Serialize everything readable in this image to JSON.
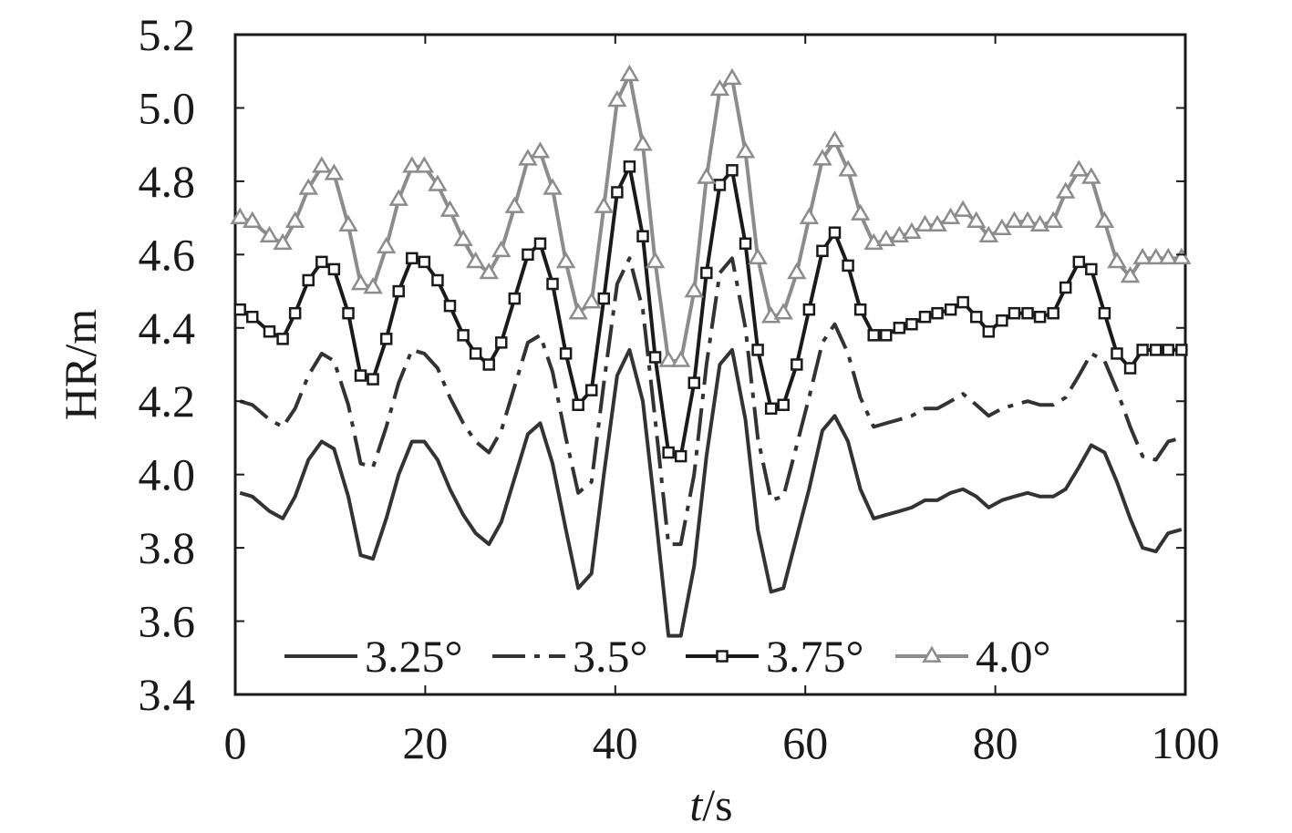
{
  "chart_data": {
    "type": "line",
    "xlabel_italic": "t",
    "xlabel_unit": "/s",
    "ylabel": "HR/m",
    "xlim": [
      0,
      100
    ],
    "ylim": [
      3.4,
      5.2
    ],
    "xticks": [
      0,
      20,
      40,
      60,
      80,
      100
    ],
    "xtick_labels": [
      "0",
      "20",
      "40",
      "60",
      "80",
      "100"
    ],
    "yticks": [
      3.4,
      3.6,
      3.8,
      4.0,
      4.2,
      4.4,
      4.6,
      4.8,
      5.0,
      5.2
    ],
    "ytick_labels": [
      "3.4",
      "3.6",
      "3.8",
      "4.0",
      "4.2",
      "4.4",
      "4.6",
      "4.8",
      "5.0",
      "5.2"
    ],
    "grid": false,
    "legend_position": "bottom",
    "x": [
      0.5,
      1.8,
      3.6,
      5.0,
      6.3,
      7.7,
      9.1,
      10.4,
      11.9,
      13.2,
      14.5,
      15.9,
      17.2,
      18.6,
      19.9,
      21.3,
      22.6,
      24.0,
      25.3,
      26.7,
      28.0,
      29.4,
      30.8,
      32.1,
      33.4,
      34.8,
      36.1,
      37.5,
      38.8,
      40.2,
      41.5,
      42.9,
      44.2,
      45.6,
      46.9,
      48.3,
      49.6,
      51.0,
      52.3,
      53.7,
      55.0,
      56.4,
      57.7,
      59.1,
      60.4,
      61.8,
      63.1,
      64.5,
      65.8,
      67.2,
      68.5,
      69.9,
      71.2,
      72.6,
      73.9,
      75.3,
      76.6,
      78.0,
      79.3,
      80.7,
      82.0,
      83.4,
      84.7,
      86.1,
      87.4,
      88.8,
      90.1,
      91.5,
      92.8,
      94.2,
      95.5,
      96.9,
      98.2,
      99.6
    ],
    "series": [
      {
        "name": "3.25°",
        "color": "#333333",
        "dash": "solid",
        "marker": "none",
        "values": [
          3.95,
          3.94,
          3.9,
          3.88,
          3.94,
          4.04,
          4.09,
          4.07,
          3.94,
          3.78,
          3.77,
          3.88,
          4.0,
          4.09,
          4.09,
          4.04,
          3.96,
          3.89,
          3.84,
          3.81,
          3.87,
          3.99,
          4.11,
          4.14,
          4.03,
          3.85,
          3.69,
          3.73,
          4.0,
          4.27,
          4.34,
          4.2,
          3.9,
          3.56,
          3.56,
          3.75,
          4.05,
          4.3,
          4.34,
          4.15,
          3.85,
          3.68,
          3.69,
          3.83,
          3.96,
          4.12,
          4.16,
          4.09,
          3.96,
          3.88,
          3.89,
          3.9,
          3.91,
          3.93,
          3.93,
          3.95,
          3.96,
          3.94,
          3.91,
          3.93,
          3.94,
          3.95,
          3.94,
          3.94,
          3.96,
          4.02,
          4.08,
          4.06,
          3.98,
          3.88,
          3.8,
          3.79,
          3.84,
          3.85
        ]
      },
      {
        "name": "3.5°",
        "color": "#333333",
        "dash": "dashdot",
        "marker": "none",
        "values": [
          4.2,
          4.19,
          4.15,
          4.13,
          4.18,
          4.27,
          4.33,
          4.31,
          4.19,
          4.03,
          4.02,
          4.13,
          4.25,
          4.34,
          4.33,
          4.29,
          4.21,
          4.14,
          4.09,
          4.06,
          4.12,
          4.24,
          4.36,
          4.38,
          4.28,
          4.1,
          3.95,
          3.98,
          4.25,
          4.52,
          4.59,
          4.45,
          4.15,
          3.81,
          3.81,
          4.0,
          4.3,
          4.55,
          4.59,
          4.4,
          4.1,
          3.93,
          3.94,
          4.08,
          4.21,
          4.36,
          4.41,
          4.33,
          4.21,
          4.13,
          4.14,
          4.15,
          4.16,
          4.18,
          4.18,
          4.2,
          4.22,
          4.19,
          4.16,
          4.18,
          4.19,
          4.2,
          4.19,
          4.19,
          4.21,
          4.27,
          4.33,
          4.31,
          4.23,
          4.13,
          4.05,
          4.04,
          4.09,
          4.1
        ]
      },
      {
        "name": "3.75°",
        "color": "#1a1a1a",
        "dash": "solid",
        "marker": "square",
        "values": [
          4.45,
          4.43,
          4.39,
          4.37,
          4.44,
          4.53,
          4.58,
          4.56,
          4.44,
          4.27,
          4.26,
          4.37,
          4.5,
          4.59,
          4.58,
          4.53,
          4.46,
          4.38,
          4.33,
          4.3,
          4.36,
          4.48,
          4.6,
          4.63,
          4.52,
          4.33,
          4.19,
          4.23,
          4.48,
          4.77,
          4.84,
          4.65,
          4.32,
          4.06,
          4.05,
          4.25,
          4.55,
          4.79,
          4.83,
          4.63,
          4.34,
          4.18,
          4.19,
          4.3,
          4.45,
          4.61,
          4.66,
          4.57,
          4.45,
          4.38,
          4.38,
          4.4,
          4.41,
          4.43,
          4.44,
          4.45,
          4.47,
          4.43,
          4.39,
          4.42,
          4.44,
          4.44,
          4.43,
          4.44,
          4.51,
          4.58,
          4.56,
          4.44,
          4.33,
          4.29,
          4.34,
          4.34,
          4.34,
          4.34
        ]
      },
      {
        "name": "4.0°",
        "color": "#8c8c8c",
        "dash": "solid",
        "marker": "triangle",
        "values": [
          4.7,
          4.69,
          4.65,
          4.63,
          4.69,
          4.78,
          4.84,
          4.82,
          4.68,
          4.52,
          4.51,
          4.62,
          4.75,
          4.84,
          4.84,
          4.79,
          4.72,
          4.64,
          4.58,
          4.55,
          4.61,
          4.73,
          4.86,
          4.88,
          4.78,
          4.58,
          4.44,
          4.47,
          4.73,
          5.02,
          5.09,
          4.9,
          4.58,
          4.31,
          4.31,
          4.5,
          4.81,
          5.05,
          5.08,
          4.88,
          4.59,
          4.43,
          4.44,
          4.55,
          4.7,
          4.86,
          4.91,
          4.83,
          4.71,
          4.63,
          4.64,
          4.65,
          4.66,
          4.68,
          4.68,
          4.7,
          4.72,
          4.69,
          4.65,
          4.67,
          4.69,
          4.69,
          4.68,
          4.69,
          4.77,
          4.83,
          4.81,
          4.69,
          4.58,
          4.54,
          4.59,
          4.59,
          4.59,
          4.59
        ]
      }
    ]
  }
}
